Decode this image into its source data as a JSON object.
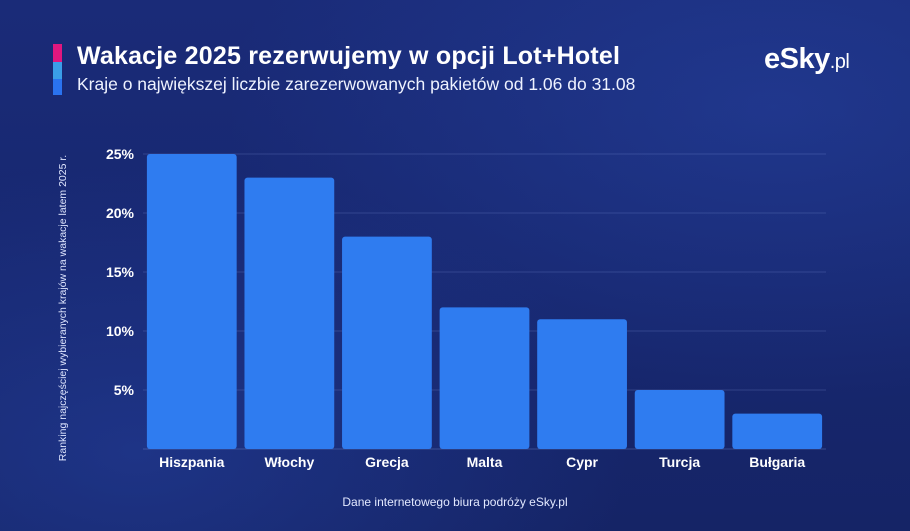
{
  "header": {
    "title": "Wakacje 2025 rezerwujemy w opcji Lot+Hotel",
    "subtitle": "Kraje o największej liczbie zarezerwowanych pakietów od 1.06 do 31.08"
  },
  "logo": {
    "main": "eSky",
    "suffix": ".pl"
  },
  "footnote": "Dane internetowego biura podróży eSky.pl",
  "colors": {
    "bar": "#2f7cf0",
    "accent_pink": "#e0177f",
    "accent_light_blue": "#3a9ee8",
    "accent_blue": "#2a73f0",
    "background": "#17276f"
  },
  "chart_data": {
    "type": "bar",
    "title": "Wakacje 2025 rezerwujemy w opcji Lot+Hotel",
    "subtitle": "Kraje o największej liczbie zarezerwowanych pakietów od 1.06 do 31.08",
    "xlabel": "",
    "ylabel": "Ranking najczęściej wybieranych krajów na wakacje latem 2025 r.",
    "categories": [
      "Hiszpania",
      "Włochy",
      "Grecja",
      "Malta",
      "Cypr",
      "Turcja",
      "Bułgaria"
    ],
    "values": [
      25,
      23,
      18,
      12,
      11,
      5,
      3
    ],
    "unit": "%",
    "ylim": [
      0,
      25
    ],
    "yticks": [
      5,
      10,
      15,
      20,
      25
    ],
    "ytick_labels": [
      "5%",
      "10%",
      "15%",
      "20%",
      "25%"
    ],
    "grid": true,
    "legend": "none"
  }
}
